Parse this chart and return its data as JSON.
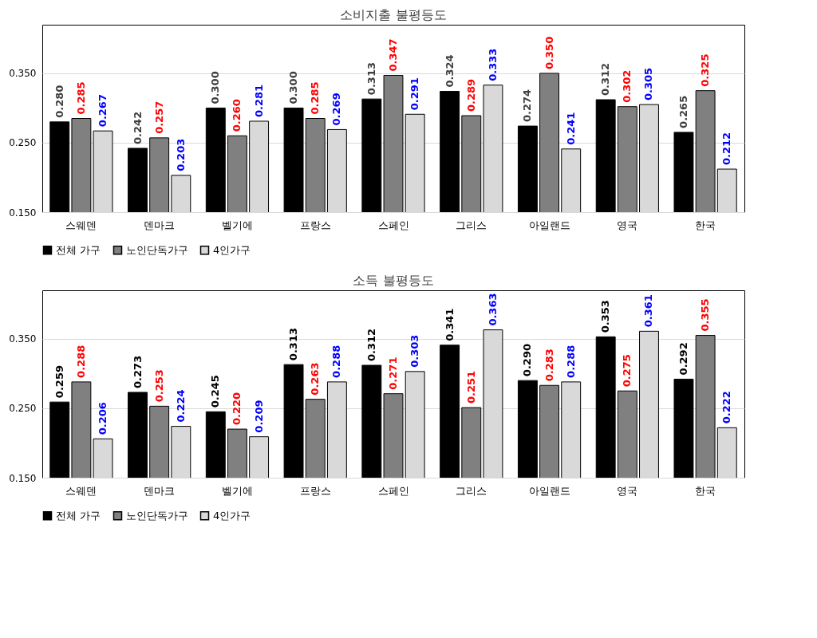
{
  "chart_data": [
    {
      "type": "bar",
      "title": "소비지출 불평등도",
      "categories": [
        "스웨덴",
        "덴마크",
        "벨기에",
        "프랑스",
        "스페인",
        "그리스",
        "아일랜드",
        "영국",
        "한국"
      ],
      "series": [
        {
          "name": "전체 가구",
          "color": "#000000",
          "values": [
            0.28,
            0.242,
            0.3,
            0.3,
            0.313,
            0.324,
            0.274,
            0.312,
            0.265
          ],
          "value_labels": [
            "0.280",
            "0.242",
            "0.300",
            "0.300",
            "0.313",
            "0.324",
            "0.274",
            "0.312",
            "0.265"
          ]
        },
        {
          "name": "노인단독가구",
          "color": "#808080",
          "values": [
            0.285,
            0.257,
            0.26,
            0.285,
            0.347,
            0.289,
            0.35,
            0.302,
            0.325
          ],
          "value_labels": [
            "0.285",
            "0.257",
            "0.260",
            "0.285",
            "0.347",
            "0.289",
            "0.350",
            "0.302",
            "0.325"
          ]
        },
        {
          "name": "4인가구",
          "color": "#d9d9d9",
          "values": [
            0.267,
            0.203,
            0.281,
            0.269,
            0.291,
            0.333,
            0.241,
            0.305,
            0.212
          ],
          "value_labels": [
            "0.267",
            "0.203",
            "0.281",
            "0.269",
            "0.291",
            "0.333",
            "0.241",
            "0.305",
            "0.212"
          ]
        }
      ],
      "ylim": [
        0.15,
        0.42
      ],
      "yticks": [
        {
          "value": 0.15,
          "label": "0.150"
        },
        {
          "value": 0.25,
          "label": "0.250"
        },
        {
          "value": 0.35,
          "label": "0.350"
        }
      ],
      "grid": "y",
      "legend": "bottom"
    },
    {
      "type": "bar",
      "title": "소득 불평등도",
      "categories": [
        "스웨덴",
        "덴마크",
        "벨기에",
        "프랑스",
        "스페인",
        "그리스",
        "아일랜드",
        "영국",
        "한국"
      ],
      "series": [
        {
          "name": "전체 가구",
          "color": "#000000",
          "values": [
            0.259,
            0.273,
            0.245,
            0.313,
            0.312,
            0.341,
            0.29,
            0.353,
            0.292
          ],
          "value_labels": [
            "0.259",
            "0.273",
            "0.245",
            "0.313",
            "0.312",
            "0.341",
            "0.290",
            "0.353",
            "0.292"
          ]
        },
        {
          "name": "노인단독가구",
          "color": "#808080",
          "values": [
            0.288,
            0.253,
            0.22,
            0.263,
            0.271,
            0.251,
            0.283,
            0.275,
            0.355
          ],
          "value_labels": [
            "0.288",
            "0.253",
            "0.220",
            "0.263",
            "0.271",
            "0.251",
            "0.283",
            "0.275",
            "0.355"
          ]
        },
        {
          "name": "4인가구",
          "color": "#d9d9d9",
          "values": [
            0.206,
            0.224,
            0.209,
            0.288,
            0.303,
            0.363,
            0.288,
            0.361,
            0.222
          ],
          "value_labels": [
            "0.206",
            "0.224",
            "0.209",
            "0.288",
            "0.303",
            "0.363",
            "0.288",
            "0.361",
            "0.222"
          ]
        }
      ],
      "ylim": [
        0.15,
        0.42
      ],
      "yticks": [
        {
          "value": 0.15,
          "label": "0.150"
        },
        {
          "value": 0.25,
          "label": "0.250"
        },
        {
          "value": 0.35,
          "label": "0.350"
        }
      ],
      "grid": "y",
      "legend": "bottom"
    }
  ]
}
